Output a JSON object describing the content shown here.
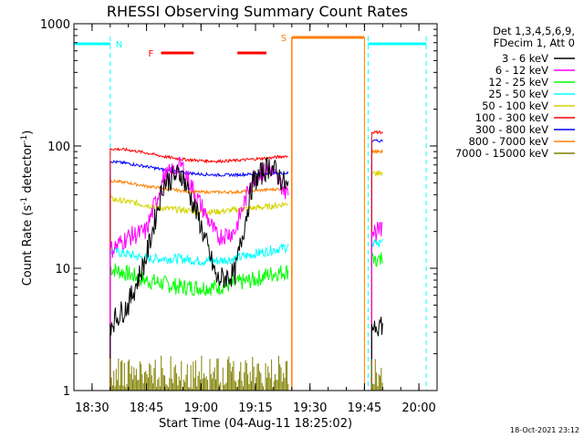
{
  "chart_data": {
    "type": "line",
    "title": "RHESSI Observing Summary Count Rates",
    "xlabel": "Start Time (04-Aug-11 18:25:02)",
    "ylabel_main": "Count Rate (s",
    "ylabel_sup1": "-1",
    "ylabel_mid": " detector",
    "ylabel_sup2": "-1",
    "ylabel_end": ")",
    "y_scale": "log",
    "ylim": [
      1,
      1000
    ],
    "xlim": [
      "18:25",
      "20:05"
    ],
    "x_ticks": [
      "18:30",
      "18:45",
      "19:00",
      "19:15",
      "19:30",
      "19:45",
      "20:00"
    ],
    "y_ticks": [
      "1",
      "10",
      "100",
      "1000"
    ],
    "timestamp": "18-Oct-2021 23:12",
    "legend_header": [
      "Det 1,3,4,5,6,9,",
      "FDecim 1, Att 0"
    ],
    "legend_placement": "top-right outside",
    "series": [
      {
        "name": "3 - 6 keV",
        "color": "#000000"
      },
      {
        "name": "6 - 12 keV",
        "color": "#ff00ff"
      },
      {
        "name": "12 - 25 keV",
        "color": "#00ff00"
      },
      {
        "name": "25 - 50 keV",
        "color": "#00ffff"
      },
      {
        "name": "50 - 100 keV",
        "color": "#d4d400"
      },
      {
        "name": "100 - 300 keV",
        "color": "#ff0000"
      },
      {
        "name": "300 - 800 keV",
        "color": "#0000ff"
      },
      {
        "name": "800 - 7000 keV",
        "color": "#ff8000"
      },
      {
        "name": "7000 - 15000 keV",
        "color": "#808000"
      }
    ],
    "data_segments": [
      {
        "start": "18:35",
        "end": "19:24",
        "levels": {
          "3 - 6 keV": [
            3.5,
            5,
            12,
            50,
            60,
            25,
            8,
            9,
            50,
            70,
            45
          ],
          "6 - 12 keV": [
            14,
            18,
            20,
            55,
            70,
            35,
            18,
            20,
            55,
            65,
            40
          ],
          "12 - 25 keV": [
            10,
            9,
            8,
            7.5,
            7,
            7,
            7,
            7.5,
            8,
            9,
            9.5
          ],
          "25 - 50 keV": [
            14,
            13,
            12,
            12,
            12,
            11.5,
            11.5,
            12,
            13,
            14,
            15
          ],
          "50 - 100 keV": [
            37,
            35,
            33,
            31,
            30,
            29,
            29,
            30,
            31,
            32,
            34
          ],
          "100 - 300 keV": [
            95,
            93,
            88,
            82,
            78,
            76,
            75,
            76,
            78,
            80,
            83
          ],
          "300 - 800 keV": [
            75,
            72,
            68,
            64,
            61,
            59,
            58,
            58,
            59,
            60,
            60
          ],
          "800 - 7000 keV": [
            52,
            50,
            47,
            45,
            43,
            42,
            42,
            42,
            43,
            44,
            45
          ]
        }
      },
      {
        "start": "19:47",
        "end": "19:50",
        "levels": {
          "3 - 6 keV": [
            3.5,
            3.5
          ],
          "6 - 12 keV": [
            20,
            20
          ],
          "12 - 25 keV": [
            12,
            12
          ],
          "25 - 50 keV": [
            16,
            16
          ],
          "50 - 100 keV": [
            60,
            60
          ],
          "100 - 300 keV": [
            130,
            130
          ],
          "300 - 800 keV": [
            110,
            110
          ],
          "800 - 7000 keV": [
            90,
            90
          ]
        }
      }
    ],
    "annotations": {
      "N": {
        "label": "N",
        "color": "#00ffff",
        "night_periods": [
          [
            "18:25",
            "18:35"
          ],
          [
            "19:46",
            "20:02"
          ]
        ]
      },
      "F": {
        "label": "F",
        "color": "#ff0000",
        "flags": [
          [
            "18:49",
            "18:58"
          ],
          [
            "19:10",
            "19:18"
          ]
        ]
      },
      "S": {
        "label": "S",
        "color": "#ff8000",
        "saa_period": [
          "19:25",
          "19:45"
        ]
      }
    }
  }
}
